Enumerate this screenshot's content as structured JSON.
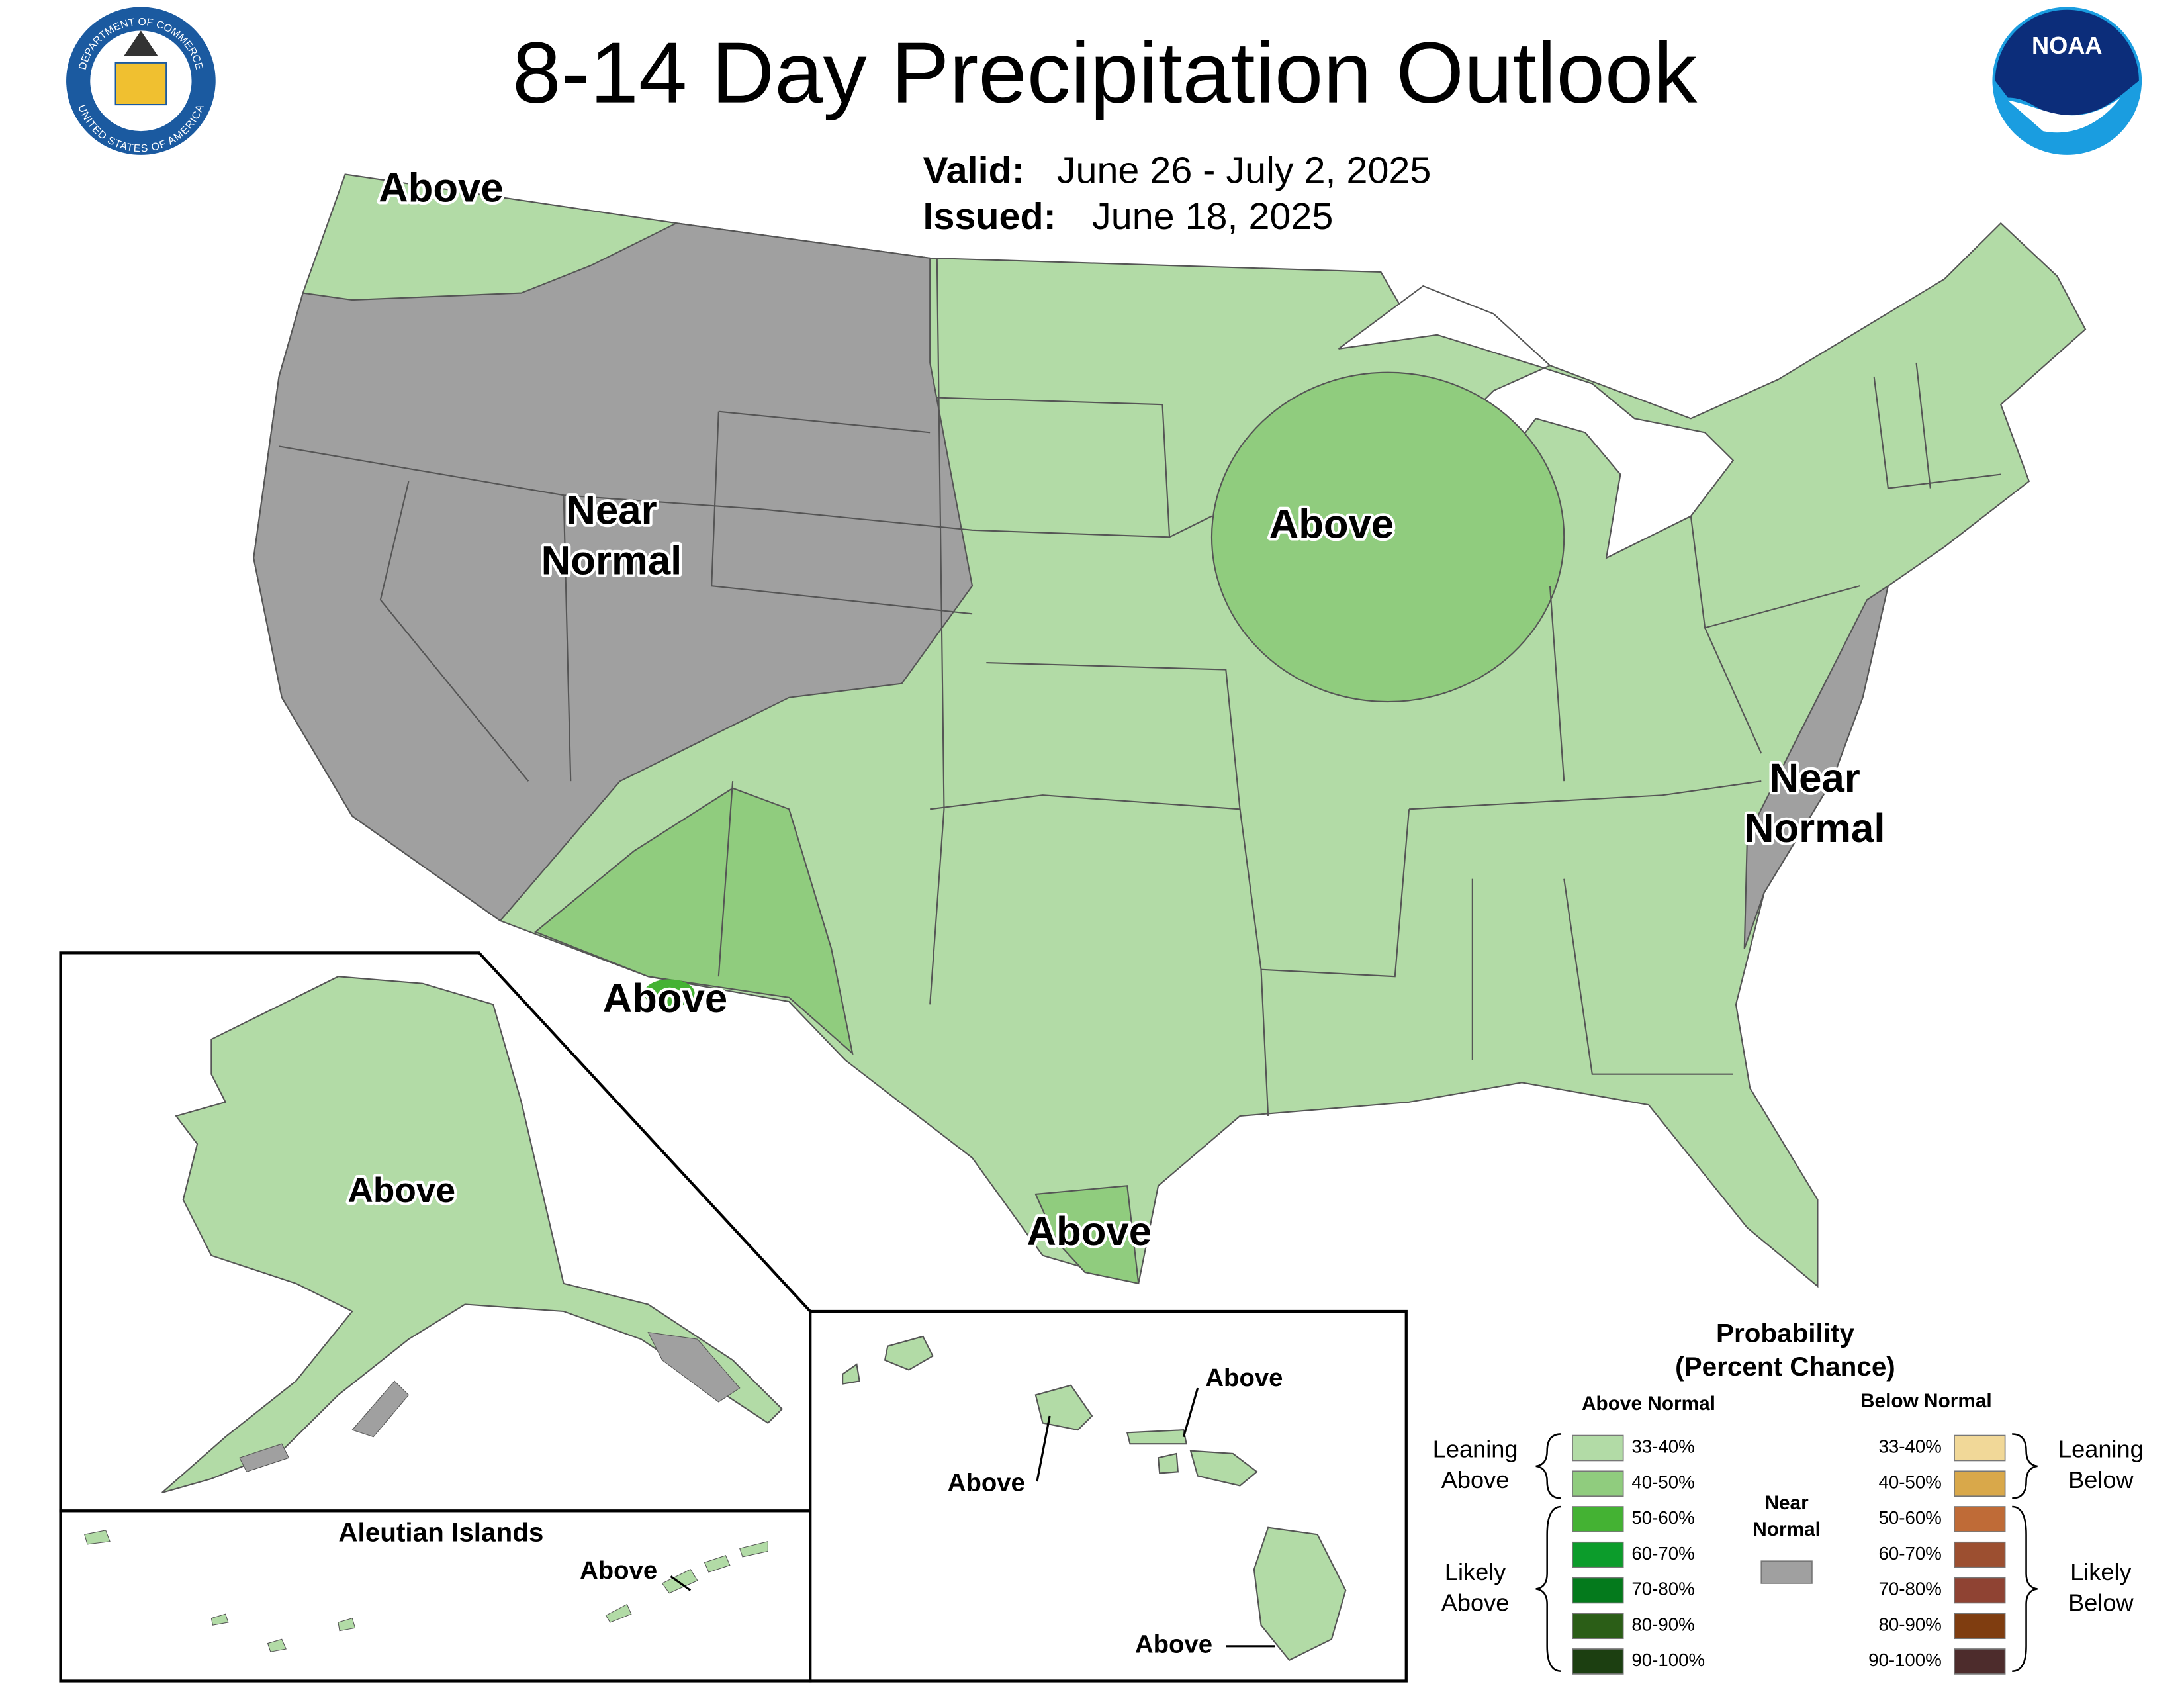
{
  "header": {
    "title": "8-14 Day Precipitation Outlook",
    "valid_label": "Valid:",
    "valid": "June 26 - July 2, 2025",
    "issued_label": "Issued:",
    "issued": "June 18, 2025"
  },
  "logos": {
    "seal_top": "DEPARTMENT OF COMMERCE",
    "seal_bottom": "UNITED STATES OF AMERICA",
    "noaa": "NOAA"
  },
  "map_labels": [
    [
      "Above"
    ],
    [
      "Near",
      "Normal"
    ],
    [
      "Above"
    ],
    [
      "Above"
    ],
    [
      "Above"
    ],
    [
      "Near",
      "Normal"
    ],
    [
      "Above"
    ],
    [
      "Above"
    ],
    [
      "Above"
    ],
    [
      "Above"
    ],
    [
      "Above"
    ]
  ],
  "insets": {
    "aleutian_title": "Aleutian Islands"
  },
  "legend": {
    "title": "Probability",
    "subtitle": "(Percent Chance)",
    "above_header": "Above Normal",
    "below_header": "Below Normal",
    "near_normal": [
      "Near",
      "Normal"
    ],
    "near_color": "#a0a0a0",
    "above_bins": [
      "33-40%",
      "40-50%",
      "50-60%",
      "60-70%",
      "70-80%",
      "80-90%",
      "90-100%"
    ],
    "above_colors": [
      "#b2dba6",
      "#90cc7e",
      "#44b233",
      "#0c9c2b",
      "#047a1c",
      "#2b5e17",
      "#1c3f11"
    ],
    "below_bins": [
      "33-40%",
      "40-50%",
      "50-60%",
      "60-70%",
      "70-80%",
      "80-90%",
      "90-100%"
    ],
    "below_colors": [
      "#f1d898",
      "#d9a84a",
      "#bf6b37",
      "#9c4f30",
      "#8f4333",
      "#7f3d10",
      "#4d2c2c"
    ],
    "leaning_above": [
      "Leaning",
      "Above"
    ],
    "likely_above": [
      "Likely",
      "Above"
    ],
    "leaning_below": [
      "Leaning",
      "Below"
    ],
    "likely_below": [
      "Likely",
      "Below"
    ]
  }
}
